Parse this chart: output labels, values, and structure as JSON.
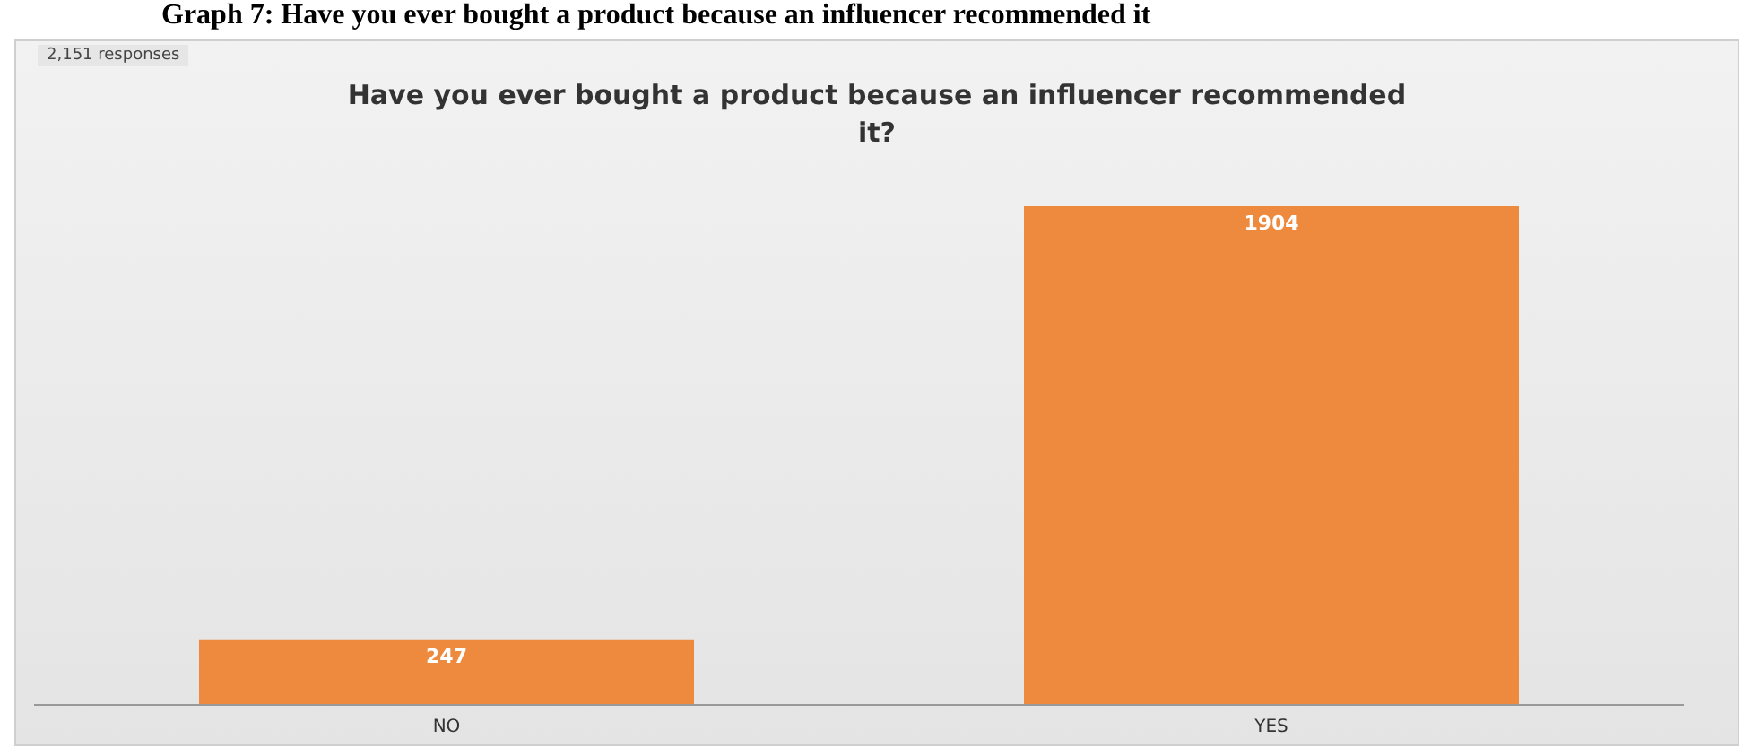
{
  "chart_data": {
    "type": "bar",
    "title": "Have you ever bought a product because an influencer recommended it?",
    "subtitle": "2,151 responses",
    "annotations": [
      "Graph 7: Have you ever bought a product because an influencer recommended it"
    ],
    "categories": [
      "NO",
      "YES"
    ],
    "values": [
      247,
      1904
    ],
    "color": "#ed8a3e",
    "data_labels": true
  }
}
